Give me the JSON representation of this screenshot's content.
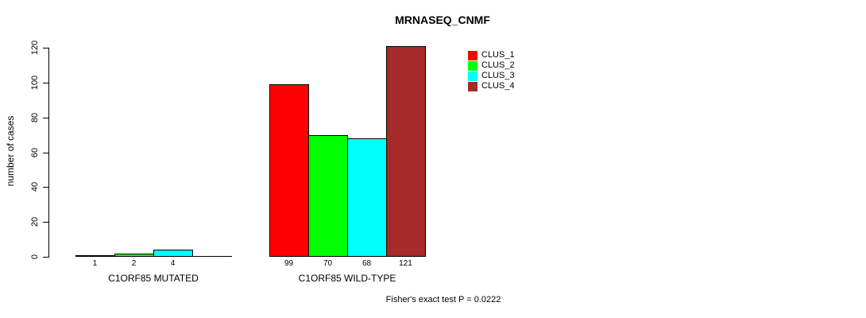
{
  "chart_data": {
    "type": "bar",
    "title": "MRNASEQ_CNMF",
    "ylabel": "number of cases",
    "xlabel": "",
    "ylim": [
      0,
      120
    ],
    "yticks": [
      0,
      20,
      40,
      60,
      80,
      100,
      120
    ],
    "grid": false,
    "legend_position": "top-right",
    "categories": [
      "C1ORF85 MUTATED",
      "C1ORF85 WILD-TYPE"
    ],
    "series": [
      {
        "name": "CLUS_1",
        "color": "#FF0000",
        "values": [
          1,
          99
        ]
      },
      {
        "name": "CLUS_2",
        "color": "#00FF00",
        "values": [
          2,
          70
        ]
      },
      {
        "name": "CLUS_3",
        "color": "#00FFFF",
        "values": [
          4,
          68
        ]
      },
      {
        "name": "CLUS_4",
        "color": "#A52A2A",
        "values": [
          0,
          121
        ]
      }
    ],
    "bar_value_labels_shown": [
      "1",
      "2",
      "4",
      "99",
      "70",
      "68",
      "121"
    ],
    "annotation": "Fisher's exact test P = 0.0222"
  }
}
